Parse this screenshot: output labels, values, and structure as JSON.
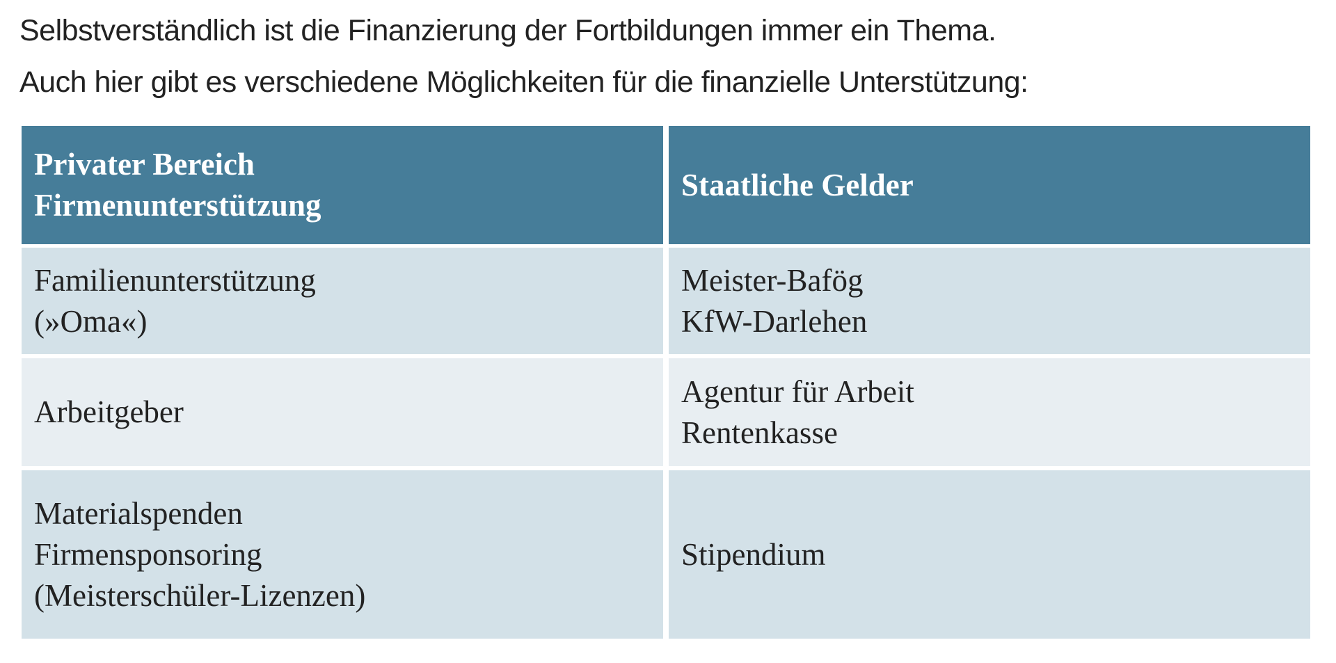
{
  "intro": [
    "Selbstverständlich ist die Finanzierung der Fortbildungen immer ein Thema.",
    "Auch hier gibt es verschiedene Möglichkeiten für die finanzielle Unterstützung:"
  ],
  "table": {
    "header": [
      [
        "Privater Bereich",
        "Firmenunterstützung"
      ],
      [
        "Staatliche Gelder"
      ]
    ],
    "rows": [
      [
        [
          "Familienunterstützung",
          "(»Oma«)"
        ],
        [
          "Meister-Bafög",
          "KfW-Darlehen"
        ]
      ],
      [
        [
          "Arbeitgeber"
        ],
        [
          "Agentur für Arbeit",
          "Rentenkasse"
        ]
      ],
      [
        [
          "Materialspenden",
          "Firmensponsoring",
          "(Meisterschüler-Lizenzen)"
        ],
        [
          "Stipendium"
        ]
      ]
    ]
  }
}
